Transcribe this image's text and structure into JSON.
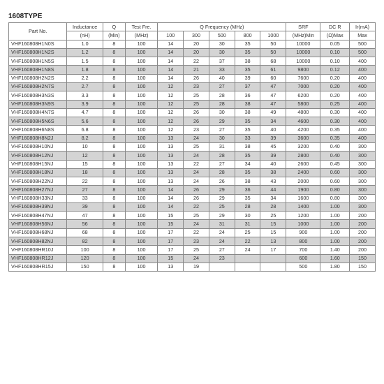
{
  "title": "1608TYPE",
  "columns": {
    "partno": "Part No.",
    "inductance_top": "Inductance",
    "inductance_bot": "(nH)",
    "q_top": "Q",
    "q_bot": "(Min)",
    "testfre_top": "Test Fre.",
    "testfre_bot": "(MHz)",
    "qfreq_group": "Q Frequency (MHz)",
    "qfreq_sub": [
      "100",
      "300",
      "500",
      "800",
      "1000"
    ],
    "srf_top": "SRF",
    "srf_bot": "(MHz)Min",
    "dcr_top": "DC R",
    "dcr_bot": "(Ω)Max",
    "ir_top": "Ir(mA)",
    "ir_bot": "Max"
  },
  "rows": [
    {
      "s": 0,
      "c": [
        "VHF160808H1N0S",
        "1.0",
        "8",
        "100",
        "14",
        "20",
        "30",
        "35",
        "50",
        "10000",
        "0.05",
        "500"
      ]
    },
    {
      "s": 1,
      "c": [
        "VHF160808H1N2S",
        "1.2",
        "8",
        "100",
        "14",
        "20",
        "30",
        "35",
        "50",
        "10000",
        "0.10",
        "500"
      ]
    },
    {
      "s": 0,
      "c": [
        "VHF160808H1N5S",
        "1.5",
        "8",
        "100",
        "14",
        "22",
        "37",
        "38",
        "68",
        "10000",
        "0.10",
        "400"
      ]
    },
    {
      "s": 1,
      "c": [
        "VHF160808H1N8S",
        "1.8",
        "8",
        "100",
        "14",
        "21",
        "33",
        "35",
        "61",
        "9800",
        "0.12",
        "400"
      ]
    },
    {
      "s": 0,
      "c": [
        "VHF160808H2N2S",
        "2.2",
        "8",
        "100",
        "14",
        "26",
        "40",
        "39",
        "60",
        "7600",
        "0.20",
        "400"
      ]
    },
    {
      "s": 1,
      "c": [
        "VHF160808H2N7S",
        "2.7",
        "8",
        "100",
        "12",
        "23",
        "27",
        "37",
        "47",
        "7000",
        "0.20",
        "400"
      ]
    },
    {
      "s": 0,
      "c": [
        "VHF160808H3N3S",
        "3.3",
        "8",
        "100",
        "12",
        "25",
        "28",
        "36",
        "47",
        "6200",
        "0.20",
        "400"
      ]
    },
    {
      "s": 1,
      "c": [
        "VHF160808H3N9S",
        "3.9",
        "8",
        "100",
        "12",
        "25",
        "28",
        "38",
        "47",
        "5800",
        "0.25",
        "400"
      ]
    },
    {
      "s": 0,
      "c": [
        "VHF160808H4N7S",
        "4.7",
        "8",
        "100",
        "12",
        "26",
        "30",
        "38",
        "49",
        "4800",
        "0.30",
        "400"
      ]
    },
    {
      "s": 1,
      "c": [
        "VHF160808H5N6S",
        "5.6",
        "8",
        "100",
        "12",
        "26",
        "29",
        "35",
        "34",
        "4600",
        "0.30",
        "400"
      ]
    },
    {
      "s": 0,
      "c": [
        "VHF160808H6N8S",
        "6.8",
        "8",
        "100",
        "12",
        "23",
        "27",
        "35",
        "40",
        "4200",
        "0.35",
        "400"
      ]
    },
    {
      "s": 1,
      "c": [
        "VHF160808H8N2J",
        "8.2",
        "8",
        "100",
        "13",
        "24",
        "30",
        "33",
        "39",
        "3600",
        "0.35",
        "400"
      ]
    },
    {
      "s": 0,
      "c": [
        "VHF160808H10NJ",
        "10",
        "8",
        "100",
        "13",
        "25",
        "31",
        "38",
        "45",
        "3200",
        "0.40",
        "300"
      ]
    },
    {
      "s": 1,
      "c": [
        "VHF160808H12NJ",
        "12",
        "8",
        "100",
        "13",
        "24",
        "28",
        "35",
        "39",
        "2800",
        "0.40",
        "300"
      ]
    },
    {
      "s": 0,
      "c": [
        "VHF160808H15NJ",
        "15",
        "8",
        "100",
        "13",
        "22",
        "27",
        "34",
        "40",
        "2600",
        "0.45",
        "300"
      ]
    },
    {
      "s": 1,
      "c": [
        "VHF160808H18NJ",
        "18",
        "8",
        "100",
        "13",
        "24",
        "28",
        "35",
        "38",
        "2400",
        "0.60",
        "300"
      ]
    },
    {
      "s": 0,
      "c": [
        "VHF160808H22NJ",
        "22",
        "8",
        "100",
        "13",
        "24",
        "26",
        "38",
        "43",
        "2000",
        "0.60",
        "300"
      ]
    },
    {
      "s": 1,
      "c": [
        "VHF160808H27NJ",
        "27",
        "8",
        "100",
        "14",
        "26",
        "29",
        "36",
        "44",
        "1900",
        "0.80",
        "300"
      ]
    },
    {
      "s": 0,
      "c": [
        "VHF160808H33NJ",
        "33",
        "8",
        "100",
        "14",
        "26",
        "29",
        "35",
        "34",
        "1600",
        "0.80",
        "300"
      ]
    },
    {
      "s": 1,
      "c": [
        "VHF160808H39NJ",
        "39",
        "8",
        "100",
        "14",
        "22",
        "25",
        "28",
        "28",
        "1400",
        "1.00",
        "300"
      ]
    },
    {
      "s": 0,
      "c": [
        "VHF160808H47NJ",
        "47",
        "8",
        "100",
        "15",
        "25",
        "29",
        "30",
        "25",
        "1200",
        "1.00",
        "200"
      ]
    },
    {
      "s": 1,
      "c": [
        "VHF160808H56NJ",
        "56",
        "8",
        "100",
        "15",
        "24",
        "31",
        "31",
        "15",
        "1000",
        "1.00",
        "200"
      ]
    },
    {
      "s": 0,
      "c": [
        "VHF160808H68NJ",
        "68",
        "8",
        "100",
        "17",
        "22",
        "24",
        "25",
        "15",
        "900",
        "1.00",
        "200"
      ]
    },
    {
      "s": 1,
      "c": [
        "VHF160808H82NJ",
        "82",
        "8",
        "100",
        "17",
        "23",
        "24",
        "22",
        "13",
        "800",
        "1.00",
        "200"
      ]
    },
    {
      "s": 0,
      "c": [
        "VHF160808HR10J",
        "100",
        "8",
        "100",
        "17",
        "25",
        "27",
        "24",
        "17",
        "700",
        "1.40",
        "200"
      ]
    },
    {
      "s": 1,
      "c": [
        "VHF160808HR12J",
        "120",
        "8",
        "100",
        "15",
        "24",
        "23",
        "",
        "",
        "600",
        "1.60",
        "150"
      ]
    },
    {
      "s": 0,
      "c": [
        "VHF160808HR15J",
        "150",
        "8",
        "100",
        "13",
        "19",
        "",
        "",
        "",
        "500",
        "1.80",
        "150"
      ]
    }
  ]
}
